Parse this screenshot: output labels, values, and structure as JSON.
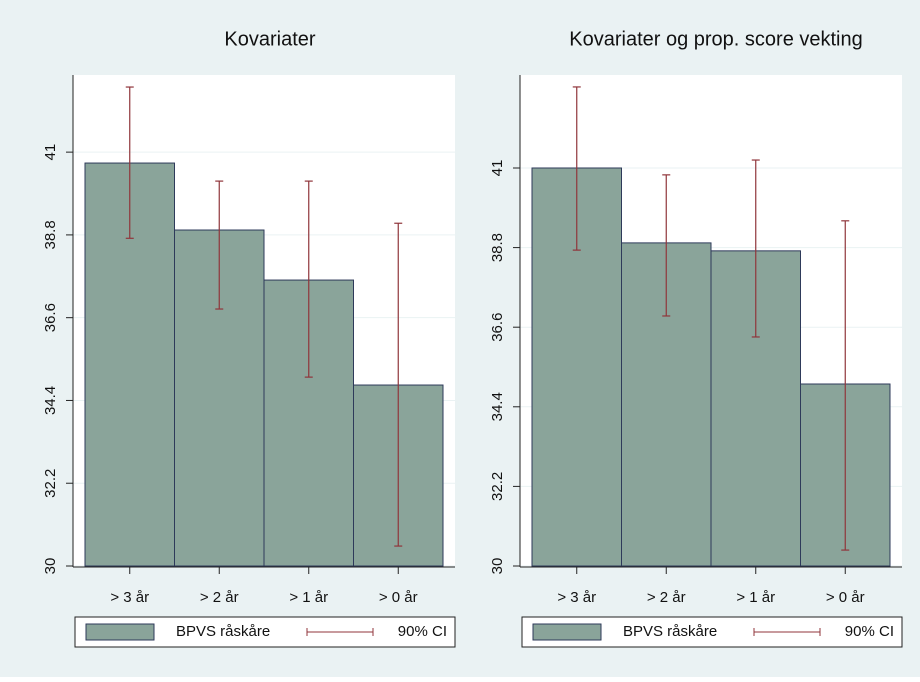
{
  "chart_data": [
    {
      "type": "bar",
      "title": "Kovariater",
      "categories": [
        "> 3 år",
        "> 2 år",
        "> 1 år",
        "> 0 år"
      ],
      "series": [
        {
          "name": "BPVS råskåre",
          "color": "#8aa49a",
          "values": [
            40.71,
            38.93,
            37.6,
            34.81
          ]
        },
        {
          "name": "90% CI",
          "color": "#90353b",
          "low": [
            38.71,
            36.83,
            35.02,
            30.53
          ],
          "high": [
            42.73,
            40.23,
            40.23,
            39.11
          ]
        }
      ],
      "ylim": [
        30,
        43.05
      ],
      "yticks": [
        30,
        32.2,
        34.4,
        36.6,
        38.8,
        41
      ],
      "grid": true,
      "legend": "bottom"
    },
    {
      "type": "bar",
      "title": "Kovariater og prop. score vekting",
      "categories": [
        "> 3 år",
        "> 2 år",
        "> 1 år",
        "> 0 år"
      ],
      "series": [
        {
          "name": "BPVS råskåre",
          "color": "#8aa49a",
          "values": [
            41.0,
            38.93,
            38.71,
            35.03
          ]
        },
        {
          "name": "90% CI",
          "color": "#90353b",
          "low": [
            38.73,
            36.91,
            36.33,
            30.44
          ],
          "high": [
            43.24,
            40.81,
            41.22,
            39.54
          ]
        }
      ],
      "ylim": [
        30,
        43.57
      ],
      "yticks": [
        30,
        32.2,
        34.4,
        36.6,
        38.8,
        41
      ],
      "grid": true,
      "legend": "bottom"
    }
  ]
}
